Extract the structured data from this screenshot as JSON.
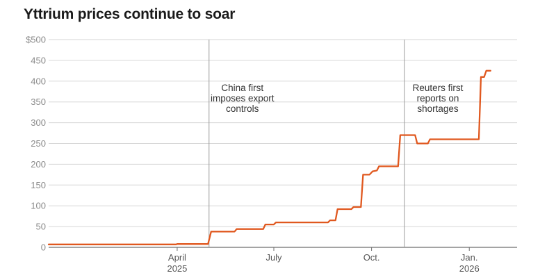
{
  "chart_data": {
    "type": "line",
    "title": "Yttrium prices continue to soar",
    "xlabel": "",
    "ylabel": "",
    "ylim": [
      0,
      500
    ],
    "y_ticks": [
      "$500",
      "450",
      "400",
      "350",
      "300",
      "250",
      "200",
      "150",
      "100",
      "50",
      "0"
    ],
    "x_range": [
      "2024-12-01",
      "2026-02-15"
    ],
    "x_ticks": [
      {
        "date": "2025-04-01",
        "lines": [
          "April",
          "2025"
        ]
      },
      {
        "date": "2025-07-01",
        "lines": [
          "July"
        ]
      },
      {
        "date": "2025-10-01",
        "lines": [
          "Oct."
        ]
      },
      {
        "date": "2026-01-01",
        "lines": [
          "Jan.",
          "2026"
        ]
      }
    ],
    "grid": true,
    "color": "#E0581F",
    "series": [
      {
        "values": [
          [
            "2024-12-01",
            7
          ],
          [
            "2025-03-31",
            7
          ],
          [
            "2025-04-01",
            8
          ],
          [
            "2025-04-30",
            8
          ],
          [
            "2025-05-03",
            38
          ],
          [
            "2025-05-25",
            38
          ],
          [
            "2025-05-27",
            44
          ],
          [
            "2025-06-21",
            44
          ],
          [
            "2025-06-23",
            55
          ],
          [
            "2025-07-01",
            55
          ],
          [
            "2025-07-03",
            60
          ],
          [
            "2025-08-21",
            60
          ],
          [
            "2025-08-23",
            65
          ],
          [
            "2025-08-28",
            65
          ],
          [
            "2025-08-30",
            92
          ],
          [
            "2025-09-12",
            92
          ],
          [
            "2025-09-14",
            97
          ],
          [
            "2025-09-21",
            97
          ],
          [
            "2025-09-23",
            175
          ],
          [
            "2025-09-29",
            175
          ],
          [
            "2025-10-02",
            183
          ],
          [
            "2025-10-06",
            185
          ],
          [
            "2025-10-08",
            195
          ],
          [
            "2025-10-26",
            195
          ],
          [
            "2025-10-28",
            270
          ],
          [
            "2025-11-11",
            270
          ],
          [
            "2025-11-13",
            250
          ],
          [
            "2025-11-23",
            250
          ],
          [
            "2025-11-25",
            260
          ],
          [
            "2026-01-10",
            260
          ],
          [
            "2026-01-12",
            410
          ],
          [
            "2026-01-15",
            410
          ],
          [
            "2026-01-17",
            425
          ],
          [
            "2026-01-21",
            425
          ]
        ]
      }
    ],
    "annotations": [
      {
        "date": "2025-05-01",
        "lines": [
          "China first",
          "imposes export",
          "controls"
        ]
      },
      {
        "date": "2025-11-01",
        "lines": [
          "Reuters first",
          "reports on",
          "shortages"
        ]
      }
    ]
  }
}
